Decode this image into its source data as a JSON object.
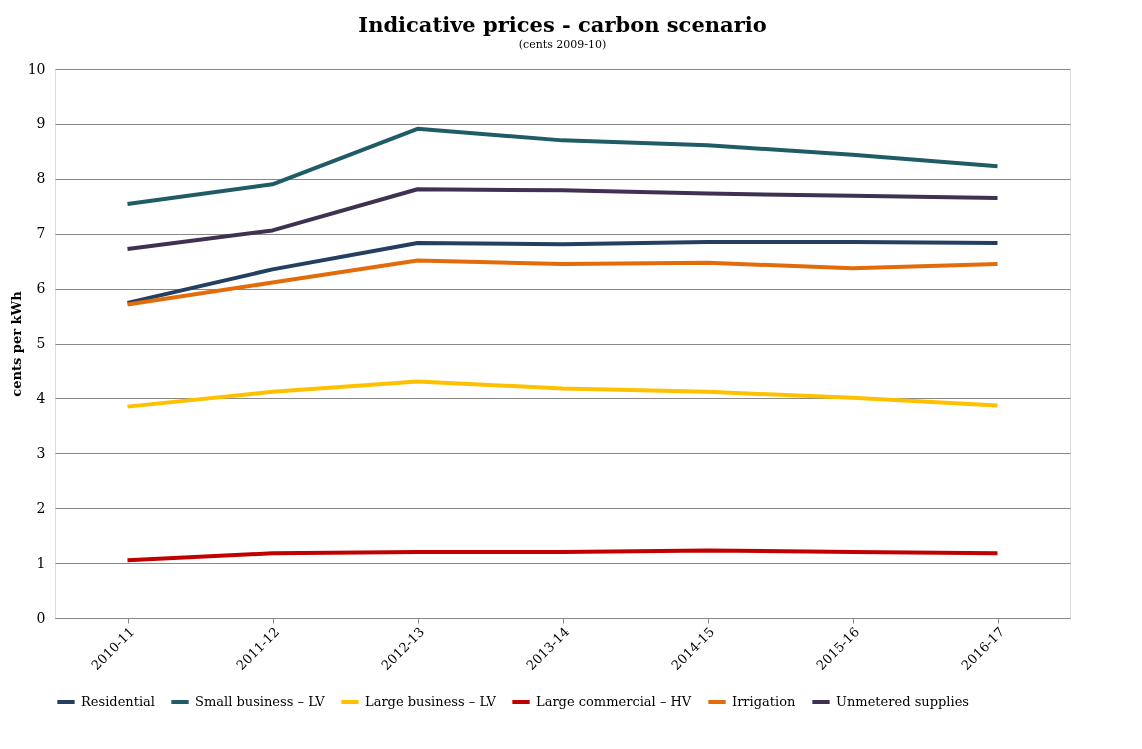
{
  "chart_data": {
    "type": "line",
    "title": "Indicative prices - carbon scenario",
    "subtitle": "(cents 2009-10)",
    "ylabel": "cents per kWh",
    "categories": [
      "2010-11",
      "2011-12",
      "2012-13",
      "2013-14",
      "2014-15",
      "2015-16",
      "2016-17"
    ],
    "series": [
      {
        "name": "Residential",
        "color": "#243f60",
        "values": [
          5.74,
          6.35,
          6.83,
          6.81,
          6.85,
          6.85,
          6.83
        ]
      },
      {
        "name": "Small business – LV",
        "color": "#1f5c66",
        "values": [
          7.54,
          7.9,
          8.91,
          8.7,
          8.61,
          8.44,
          8.23
        ]
      },
      {
        "name": "Large business – LV",
        "color": "#ffc000",
        "values": [
          3.85,
          4.12,
          4.31,
          4.18,
          4.12,
          4.01,
          3.87
        ]
      },
      {
        "name": "Large commercial – HV",
        "color": "#c00000",
        "values": [
          1.05,
          1.18,
          1.2,
          1.2,
          1.23,
          1.2,
          1.18
        ]
      },
      {
        "name": "Irrigation",
        "color": "#e36c0a",
        "values": [
          5.71,
          6.11,
          6.51,
          6.45,
          6.47,
          6.37,
          6.45
        ]
      },
      {
        "name": "Unmetered supplies",
        "color": "#403152",
        "values": [
          6.72,
          7.06,
          7.81,
          7.79,
          7.73,
          7.69,
          7.65
        ]
      }
    ],
    "ylim": [
      0,
      10
    ],
    "yticks": [
      0,
      1,
      2,
      3,
      4,
      5,
      6,
      7,
      8,
      9,
      10
    ],
    "grid": "y",
    "legend": "bottom",
    "marker": "none",
    "line_style": "solid"
  }
}
